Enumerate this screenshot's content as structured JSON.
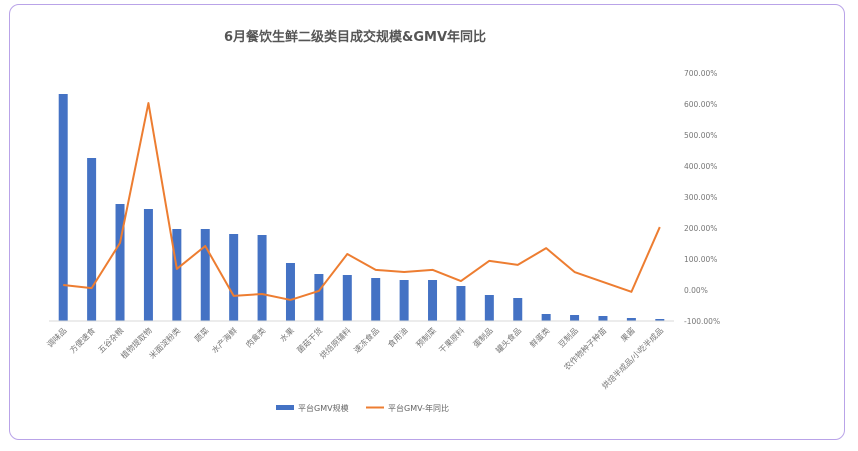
{
  "chart_data": {
    "type": "bar+line",
    "title": "6月餐饮生鲜二级类目成交规模&GMV年同比",
    "categories": [
      "调味品",
      "方便速食",
      "五谷杂粮",
      "植物提取物",
      "米面淀粉类",
      "蔬菜",
      "水产海鲜",
      "肉禽类",
      "水果",
      "菌菇干货",
      "烘焙原辅料",
      "速冻食品",
      "食用油",
      "预制菜",
      "干果原料",
      "蛋制品",
      "罐头食品",
      "鲜蛋类",
      "豆制品",
      "农作物种子种苗",
      "果酱",
      "烘焙半成品/小吃半成品"
    ],
    "series": [
      {
        "name": "平台GMV规模",
        "type": "bar",
        "axis": "left (hidden)",
        "color": "#4472C4",
        "values": [
          227,
          163,
          117,
          112,
          92,
          92,
          87,
          86,
          58,
          47,
          46,
          43,
          41,
          41,
          35,
          26,
          23,
          7,
          6,
          5,
          3,
          2
        ]
      },
      {
        "name": "平台GMV-年同比",
        "type": "line",
        "axis": "right",
        "unit": "%",
        "color": "#ED7D31",
        "values": [
          16,
          6,
          152,
          603,
          68,
          142,
          -19,
          -13,
          -32,
          -3,
          116,
          65,
          58,
          65,
          29,
          94,
          81,
          135,
          58,
          26,
          -6,
          203
        ]
      }
    ],
    "right_axis": {
      "range": [
        -100,
        700
      ],
      "ticks": [
        "700.00%",
        "600.00%",
        "500.00%",
        "400.00%",
        "300.00%",
        "200.00%",
        "100.00%",
        "0.00%",
        "-100.00%"
      ]
    },
    "grid": false,
    "legend": "bottom"
  }
}
